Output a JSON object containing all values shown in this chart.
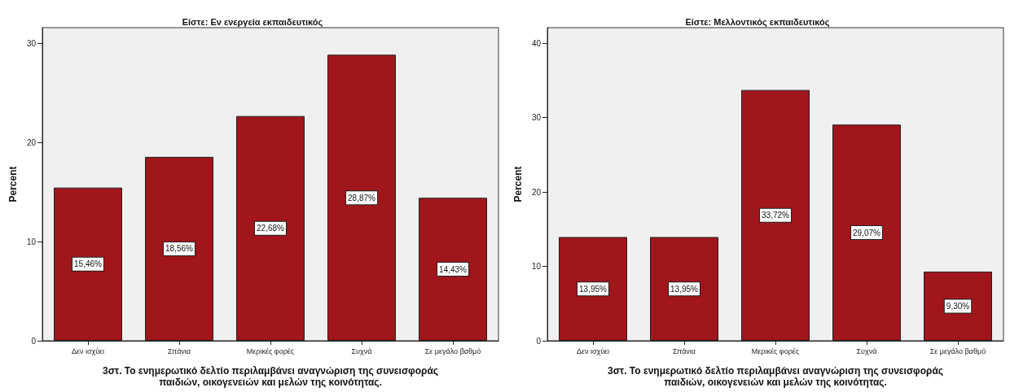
{
  "chart_data": [
    {
      "type": "bar",
      "title": "Είστε: Εν ενεργεία εκπαιδευτικός",
      "xlabel": "3στ. Το ενημερωτικό δελτίο περιλαμβάνει αναγνώριση της συνεισφοράς\nπαιδιών, οικογενειών και μελών της κοινότητας.",
      "ylabel": "Percent",
      "categories": [
        "Δεν ισχύει",
        "Σπάνια",
        "Μερικές φορές",
        "Συχνά",
        "Σε μεγάλο βαθμό"
      ],
      "values": [
        15.46,
        18.56,
        22.68,
        28.87,
        14.43
      ],
      "value_labels": [
        "15,46%",
        "18,56%",
        "22,68%",
        "28,87%",
        "14,43%"
      ],
      "color": "#a0161b",
      "ylim": [
        0,
        31.6
      ],
      "yticks": [
        0,
        10,
        20,
        30
      ],
      "grid": false
    },
    {
      "type": "bar",
      "title": "Είστε: Μελλοντικός εκπαιδευτικός",
      "xlabel": "3στ. Το ενημερωτικό δελτίο περιλαμβάνει αναγνώριση της συνεισφοράς\nπαιδιών, οικογενειών και μελών της κοινότητας.",
      "ylabel": "Percent",
      "categories": [
        "Δεν ισχύει",
        "Σπάνια",
        "Μερικές φορές",
        "Συχνά",
        "Σε μεγάλο βαθμό"
      ],
      "values": [
        13.95,
        13.95,
        33.72,
        29.07,
        9.3
      ],
      "value_labels": [
        "13,95%",
        "13,95%",
        "33,72%",
        "29,07%",
        "9,30%"
      ],
      "color": "#a0161b",
      "ylim": [
        0,
        42.1
      ],
      "yticks": [
        0,
        10,
        20,
        30,
        40
      ],
      "grid": false
    }
  ]
}
